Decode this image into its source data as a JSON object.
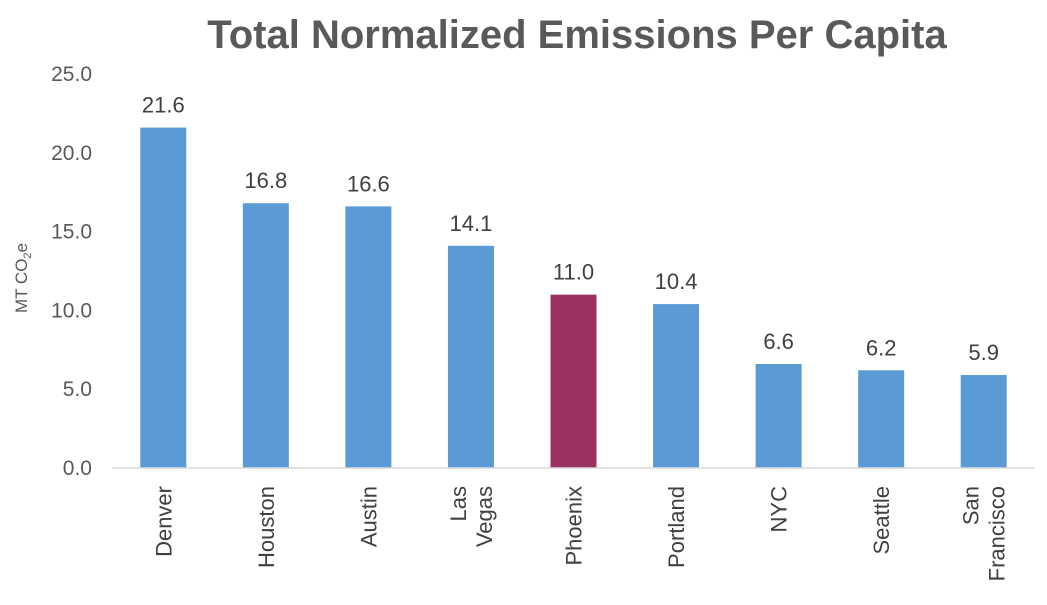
{
  "chart_data": {
    "type": "bar",
    "title": "Total Normalized Emissions Per Capita",
    "ylabel": "MT CO",
    "ylabel_sub": "2",
    "ylabel_suffix": "e",
    "xlabel": "",
    "ylim": [
      0,
      25
    ],
    "yticks": [
      "0.0",
      "5.0",
      "10.0",
      "15.0",
      "20.0",
      "25.0"
    ],
    "grid": false,
    "categories": [
      [
        "Denver"
      ],
      [
        "Houston"
      ],
      [
        "Austin"
      ],
      [
        "Las",
        "Vegas"
      ],
      [
        "Phoenix"
      ],
      [
        "Portland"
      ],
      [
        "NYC"
      ],
      [
        "Seattle"
      ],
      [
        "San",
        "Francisco"
      ]
    ],
    "values": [
      21.6,
      16.8,
      16.6,
      14.1,
      11.0,
      10.4,
      6.6,
      6.2,
      5.9
    ],
    "value_labels": [
      "21.6",
      "16.8",
      "16.6",
      "14.1",
      "11.0",
      "10.4",
      "6.6",
      "6.2",
      "5.9"
    ],
    "colors": {
      "default": "#5b9bd5",
      "highlight": "#9b3163"
    },
    "highlight_index": 4
  }
}
